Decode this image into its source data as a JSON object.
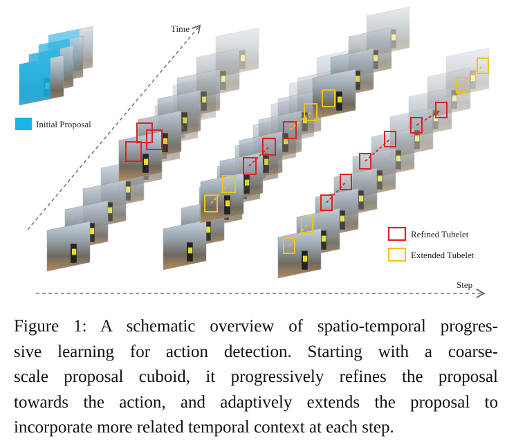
{
  "figure": {
    "axis_time": "Time",
    "axis_step": "Step",
    "legend": {
      "initial": "Initial Proposal",
      "refined": "Refined Tubelet",
      "extended": "Extended Tubelet"
    },
    "colors": {
      "initial": "#1ab4e8",
      "refined": "#e02020",
      "extended": "#f1c21b",
      "axis": "#666666"
    }
  },
  "caption": {
    "lines": [
      "Figure 1: A schematic overview of spatio-temporal progres-",
      "sive learning for action detection.  Starting with a coarse-",
      "scale proposal cuboid, it progressively refines the proposal",
      "towards the action, and adaptively extends the proposal to",
      "incorporate more related temporal context at each step."
    ]
  }
}
